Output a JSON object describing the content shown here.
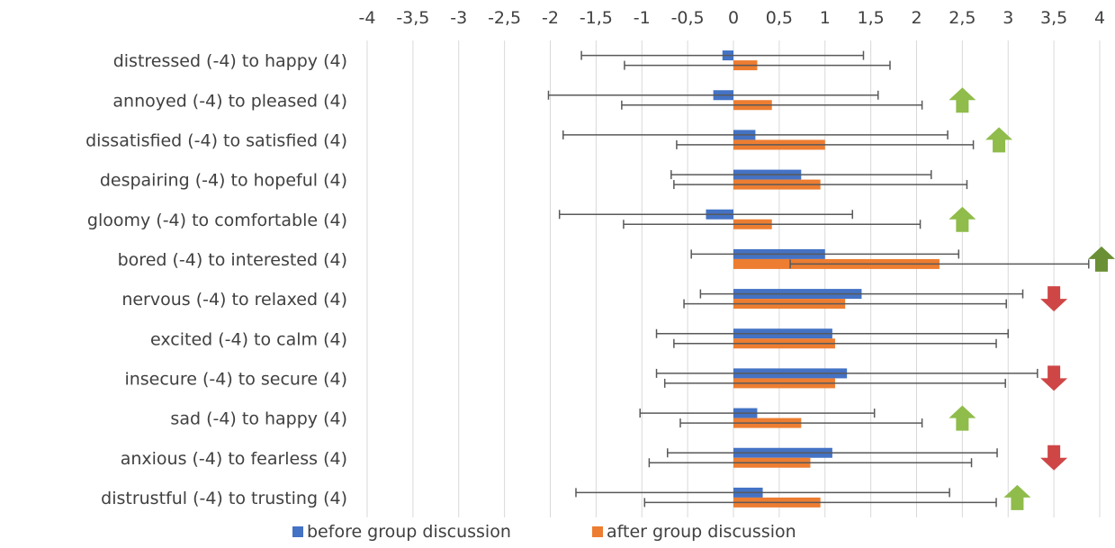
{
  "chart_data": {
    "type": "bar",
    "orientation": "horizontal",
    "xlim": [
      -4,
      4
    ],
    "x_tick_labels": [
      "-4",
      "-3,5",
      "-3",
      "-2,5",
      "-2",
      "-1,5",
      "-1",
      "-0,5",
      "0",
      "0,5",
      "1",
      "1,5",
      "2",
      "2,5",
      "3",
      "3,5",
      "4"
    ],
    "x_tick_values": [
      -4,
      -3.5,
      -3,
      -2.5,
      -2,
      -1.5,
      -1,
      -0.5,
      0,
      0.5,
      1,
      1.5,
      2,
      2.5,
      3,
      3.5,
      4
    ],
    "x_axis_position": "top",
    "grid": true,
    "legend_position": "bottom",
    "categories": [
      "distressed (-4) to happy (4)",
      "annoyed (-4) to pleased (4)",
      "dissatisfied (-4) to satisfied (4)",
      "despairing (-4) to hopeful (4)",
      "gloomy (-4) to comfortable (4)",
      "bored (-4) to interested (4)",
      "nervous (-4) to relaxed (4)",
      "excited (-4) to calm (4)",
      "insecure (-4) to secure (4)",
      "sad (-4) to happy (4)",
      "anxious (-4) to fearless (4)",
      "distrustful (-4) to trusting (4)"
    ],
    "series": [
      {
        "name": "before group discussion",
        "color": "#4472c4",
        "values": [
          -0.12,
          -0.22,
          0.24,
          0.74,
          -0.3,
          1.0,
          1.4,
          1.08,
          1.24,
          0.26,
          1.08,
          0.32
        ],
        "error": [
          1.54,
          1.8,
          2.1,
          1.42,
          1.6,
          1.46,
          1.76,
          1.92,
          2.08,
          1.28,
          1.8,
          2.04
        ]
      },
      {
        "name": "after group discussion",
        "color": "#ed7d31",
        "values": [
          0.26,
          0.42,
          1.0,
          0.95,
          0.42,
          2.25,
          1.22,
          1.11,
          1.11,
          0.74,
          0.84,
          0.95
        ],
        "error": [
          1.45,
          1.64,
          1.62,
          1.6,
          1.62,
          1.63,
          1.76,
          1.76,
          1.86,
          1.32,
          1.76,
          1.92
        ]
      }
    ],
    "arrow_markers": [
      {
        "category_index": 1,
        "x": 2.5,
        "direction": "up",
        "color": "#8fbc4a"
      },
      {
        "category_index": 2,
        "x": 2.9,
        "direction": "up",
        "color": "#8fbc4a"
      },
      {
        "category_index": 4,
        "x": 2.5,
        "direction": "up",
        "color": "#8fbc4a"
      },
      {
        "category_index": 5,
        "x": 4.1,
        "direction": "up",
        "color": "#6a8f34"
      },
      {
        "category_index": 6,
        "x": 3.5,
        "direction": "down",
        "color": "#cf4646"
      },
      {
        "category_index": 8,
        "x": 3.5,
        "direction": "down",
        "color": "#cf4646"
      },
      {
        "category_index": 9,
        "x": 2.5,
        "direction": "up",
        "color": "#8fbc4a"
      },
      {
        "category_index": 10,
        "x": 3.5,
        "direction": "down",
        "color": "#cf4646"
      },
      {
        "category_index": 11,
        "x": 3.1,
        "direction": "up",
        "color": "#8fbc4a"
      }
    ],
    "colors": {
      "grid": "#d9d9d9",
      "error_bar": "#595959",
      "text": "#404040"
    }
  }
}
